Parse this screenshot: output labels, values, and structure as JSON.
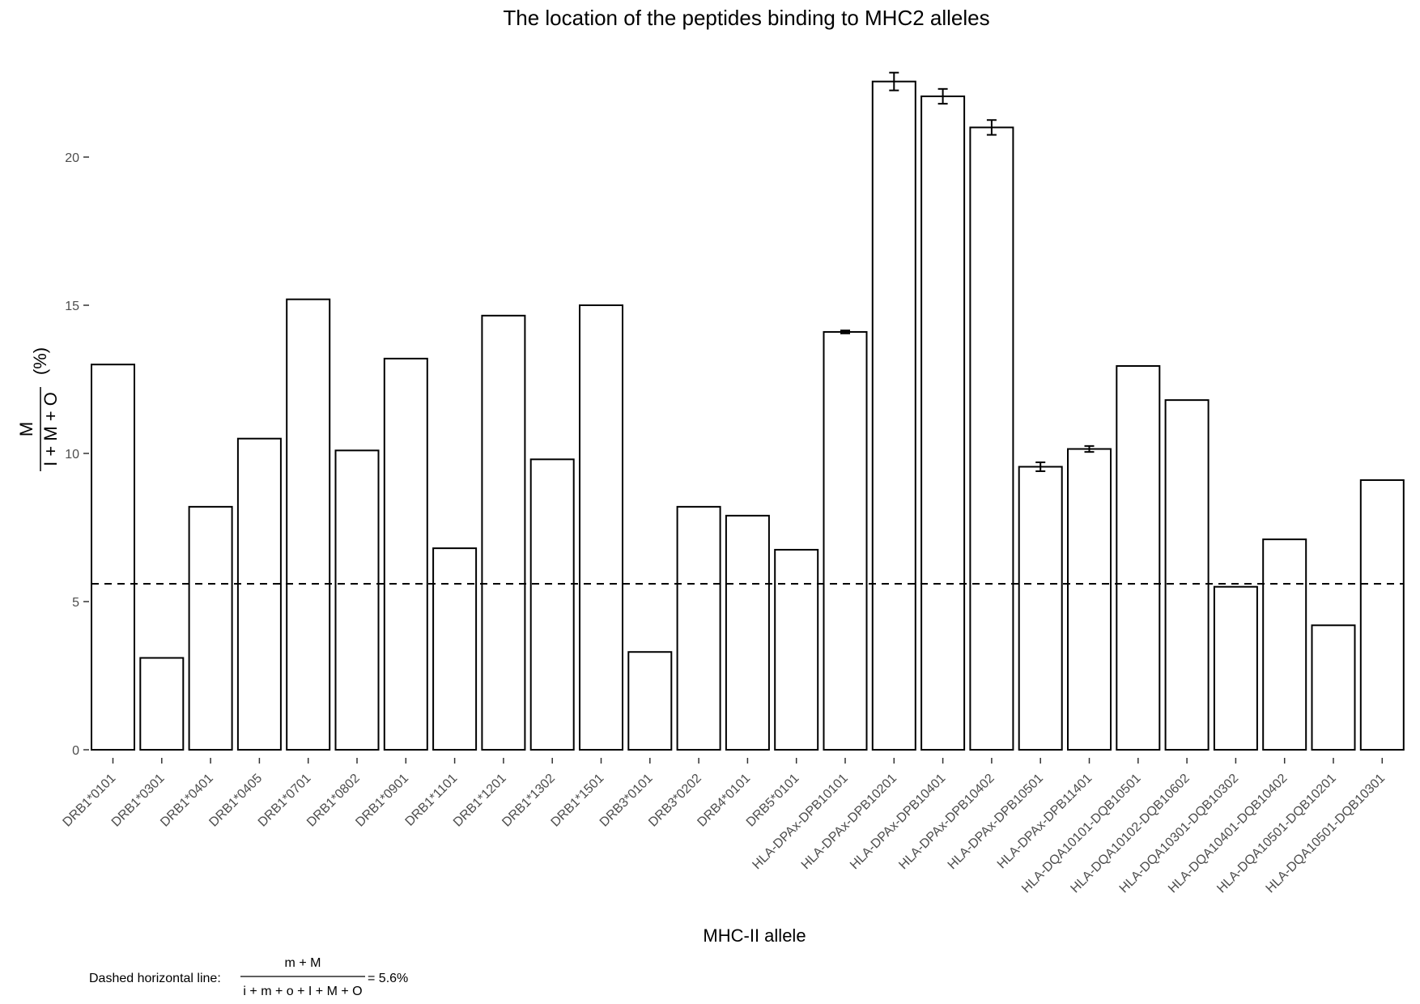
{
  "chart_data": {
    "type": "bar",
    "title": "The location of the peptides binding to MHC2 alleles",
    "xlabel": "MHC-II allele",
    "ylabel": {
      "numerator": "M",
      "denominator": "I + M + O",
      "suffix": "(%)"
    },
    "ylim": [
      0,
      23.5
    ],
    "yticks": [
      0,
      5,
      10,
      15,
      20
    ],
    "grid": false,
    "categories": [
      "DRB1*0101",
      "DRB1*0301",
      "DRB1*0401",
      "DRB1*0405",
      "DRB1*0701",
      "DRB1*0802",
      "DRB1*0901",
      "DRB1*1101",
      "DRB1*1201",
      "DRB1*1302",
      "DRB1*1501",
      "DRB3*0101",
      "DRB3*0202",
      "DRB4*0101",
      "DRB5*0101",
      "HLA-DPAx-DPB10101",
      "HLA-DPAx-DPB10201",
      "HLA-DPAx-DPB10401",
      "HLA-DPAx-DPB10402",
      "HLA-DPAx-DPB10501",
      "HLA-DPAx-DPB11401",
      "HLA-DQA10101-DQB10501",
      "HLA-DQA10102-DQB10602",
      "HLA-DQA10301-DQB10302",
      "HLA-DQA10401-DQB10402",
      "HLA-DQA10501-DQB10201",
      "HLA-DQA10501-DQB10301"
    ],
    "values": [
      13.0,
      3.1,
      8.2,
      10.5,
      15.2,
      10.1,
      13.2,
      6.8,
      14.65,
      9.8,
      15.0,
      3.3,
      8.2,
      7.9,
      6.75,
      14.1,
      22.55,
      22.05,
      21.0,
      9.55,
      10.15,
      12.95,
      11.8,
      5.5,
      7.1,
      4.2,
      9.1
    ],
    "error_bars": [
      null,
      null,
      null,
      null,
      null,
      null,
      null,
      null,
      null,
      null,
      null,
      null,
      null,
      null,
      null,
      [
        14.05,
        14.15
      ],
      [
        22.25,
        22.85
      ],
      [
        21.8,
        22.3
      ],
      [
        20.75,
        21.25
      ],
      [
        9.4,
        9.7
      ],
      [
        10.05,
        10.25
      ],
      null,
      null,
      null,
      null,
      null,
      null
    ],
    "reference_line": {
      "y": 5.6,
      "style": "dashed"
    },
    "footnote": {
      "prefix": "Dashed horizontal line:",
      "numerator": "m + M",
      "denominator": "i + m + o + I + M + O",
      "suffix": "= 5.6%"
    }
  }
}
